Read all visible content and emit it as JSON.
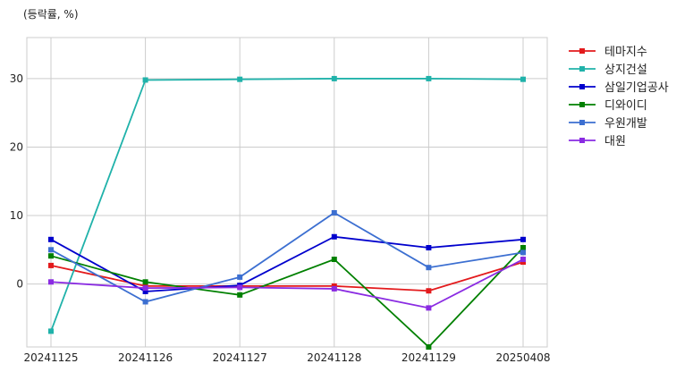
{
  "chart_data": {
    "type": "line",
    "unit_label": "(등락률, %)",
    "categories": [
      "20241125",
      "20241126",
      "20241127",
      "20241128",
      "20241129",
      "20250408"
    ],
    "ylim": [
      -9.2,
      36
    ],
    "yticks": [
      0,
      10,
      20,
      30
    ],
    "grid": true,
    "legend_position": "right-outside-top",
    "series": [
      {
        "name": "테마지수",
        "color": "#e31a1c",
        "values": [
          2.7,
          -0.3,
          -0.3,
          -0.3,
          -1.0,
          3.2
        ]
      },
      {
        "name": "상지건설",
        "color": "#20b2aa",
        "values": [
          -6.9,
          29.8,
          29.9,
          30.0,
          30.0,
          29.9
        ]
      },
      {
        "name": "삼일기업공사",
        "color": "#0000cd",
        "values": [
          6.5,
          -1.1,
          -0.2,
          6.9,
          5.3,
          6.5
        ]
      },
      {
        "name": "디와이디",
        "color": "#008000",
        "values": [
          4.1,
          0.3,
          -1.6,
          3.6,
          -9.2,
          5.3
        ]
      },
      {
        "name": "우원개발",
        "color": "#3c6fd1",
        "values": [
          5.0,
          -2.6,
          1.0,
          10.4,
          2.4,
          4.6
        ]
      },
      {
        "name": "대원",
        "color": "#8a2be2",
        "values": [
          0.3,
          -0.6,
          -0.5,
          -0.7,
          -3.5,
          3.6
        ]
      }
    ]
  }
}
